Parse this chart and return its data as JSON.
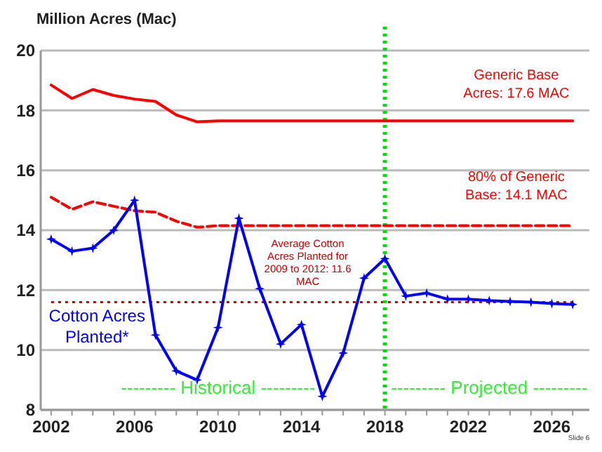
{
  "chart_data": {
    "type": "line",
    "ylabel": "Million Acres (Mac)",
    "x": [
      2002,
      2003,
      2004,
      2005,
      2006,
      2007,
      2008,
      2009,
      2010,
      2011,
      2012,
      2013,
      2014,
      2015,
      2016,
      2017,
      2018,
      2019,
      2020,
      2021,
      2022,
      2023,
      2024,
      2025,
      2026,
      2027
    ],
    "series": [
      {
        "name": "Generic Base Acres: 17.6 MAC",
        "color": "#ff0000",
        "line_style": "solid",
        "marker": "none",
        "values": [
          18.85,
          18.4,
          18.7,
          18.5,
          18.38,
          18.3,
          17.85,
          17.62,
          17.65,
          17.65,
          17.65,
          17.65,
          17.65,
          17.65,
          17.65,
          17.65,
          17.65,
          17.65,
          17.65,
          17.65,
          17.65,
          17.65,
          17.65,
          17.65,
          17.65,
          17.65
        ]
      },
      {
        "name": "80% of Generic Base: 14.1 MAC",
        "color": "#ff0000",
        "line_style": "dashed",
        "marker": "none",
        "values": [
          15.1,
          14.7,
          14.95,
          14.8,
          14.65,
          14.6,
          14.3,
          14.1,
          14.15,
          14.15,
          14.15,
          14.15,
          14.15,
          14.15,
          14.15,
          14.15,
          14.15,
          14.15,
          14.15,
          14.15,
          14.15,
          14.15,
          14.15,
          14.15,
          14.15,
          14.15
        ]
      },
      {
        "name": "Cotton Acres Planted*",
        "color": "#0000ff",
        "line_style": "solid",
        "marker": "star",
        "values": [
          13.7,
          13.3,
          13.4,
          14.0,
          15.0,
          10.5,
          9.3,
          9.0,
          10.75,
          14.4,
          12.05,
          10.2,
          10.85,
          8.45,
          9.9,
          12.4,
          13.05,
          11.8,
          11.9,
          11.7,
          11.7,
          11.65,
          11.62,
          11.6,
          11.55,
          11.52
        ]
      }
    ],
    "xlim": [
      2001.5,
      2027.8
    ],
    "ylim": [
      8,
      20
    ],
    "xticks": [
      {
        "value": 2002,
        "label": "2002"
      },
      {
        "value": 2003,
        "label": null
      },
      {
        "value": 2004,
        "label": null
      },
      {
        "value": 2005,
        "label": null
      },
      {
        "value": 2006,
        "label": "2006"
      },
      {
        "value": 2007,
        "label": null
      },
      {
        "value": 2008,
        "label": null
      },
      {
        "value": 2009,
        "label": null
      },
      {
        "value": 2010,
        "label": "2010"
      },
      {
        "value": 2011,
        "label": null
      },
      {
        "value": 2012,
        "label": null
      },
      {
        "value": 2013,
        "label": null
      },
      {
        "value": 2014,
        "label": "2014"
      },
      {
        "value": 2015,
        "label": null
      },
      {
        "value": 2016,
        "label": null
      },
      {
        "value": 2017,
        "label": null
      },
      {
        "value": 2018,
        "label": "2018"
      },
      {
        "value": 2019,
        "label": null
      },
      {
        "value": 2020,
        "label": null
      },
      {
        "value": 2021,
        "label": null
      },
      {
        "value": 2022,
        "label": "2022"
      },
      {
        "value": 2023,
        "label": null
      },
      {
        "value": 2024,
        "label": null
      },
      {
        "value": 2025,
        "label": null
      },
      {
        "value": 2026,
        "label": "2026"
      },
      {
        "value": 2027,
        "label": null
      }
    ],
    "yticks": [
      8,
      10,
      12,
      14,
      16,
      18,
      20
    ],
    "grid": "y",
    "ref_lines": [
      {
        "axis": "y",
        "value": 11.6,
        "label": "Average Cotton Acres Planted for 2009 to 2012: 11.6 MAC",
        "color": "#cc0000",
        "line_style": "dotted"
      },
      {
        "axis": "x",
        "value": 2018,
        "color": "#00dd00",
        "line_style": "dotted"
      }
    ],
    "annotations": [
      "--------- Historical ---------",
      "--------- Projected ---------",
      "Slide 6"
    ]
  }
}
